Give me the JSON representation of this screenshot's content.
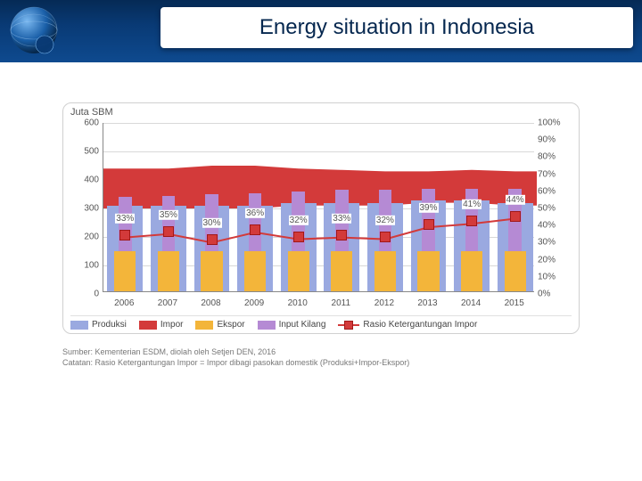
{
  "header": {
    "title": "Energy situation in Indonesia",
    "bg_gradient_from": "#052a55",
    "bg_gradient_to": "#0e4a8f",
    "title_color": "#05274f"
  },
  "chart": {
    "type": "combo-bar-area-line",
    "y_left_label": "Juta SBM",
    "y_left": {
      "min": 0,
      "max": 600,
      "step": 100
    },
    "y_right": {
      "min": 0,
      "max": 100,
      "step": 10,
      "suffix": "%"
    },
    "categories": [
      "2006",
      "2007",
      "2008",
      "2009",
      "2010",
      "2011",
      "2012",
      "2013",
      "2014",
      "2015"
    ],
    "series": {
      "produksi": {
        "label": "Produksi",
        "color": "#9aa9e0",
        "type": "bar",
        "values": [
          300,
          300,
          300,
          300,
          310,
          310,
          310,
          320,
          320,
          310
        ]
      },
      "impor": {
        "label": "Impor",
        "color": "#d33a3a",
        "type": "area",
        "values": [
          440,
          440,
          450,
          450,
          440,
          435,
          430,
          430,
          435,
          430
        ]
      },
      "ekspor": {
        "label": "Ekspor",
        "color": "#f3b53a",
        "type": "bar",
        "values": [
          140,
          140,
          140,
          140,
          140,
          140,
          140,
          140,
          140,
          140
        ]
      },
      "input_kilang": {
        "label": "Input Kilang",
        "color": "#b58ad4",
        "type": "bar",
        "values": [
          330,
          335,
          340,
          345,
          350,
          355,
          355,
          360,
          360,
          360
        ]
      },
      "rasio": {
        "label": "Rasio Ketergantungan Impor",
        "color": "#d33a3a",
        "marker_border": "#a01818",
        "type": "line-marker",
        "values_pct": [
          33,
          35,
          30,
          36,
          32,
          33,
          32,
          39,
          41,
          44
        ],
        "labels": [
          "33%",
          "35%",
          "30%",
          "36%",
          "32%",
          "33%",
          "32%",
          "39%",
          "41%",
          "44%"
        ]
      }
    },
    "grid_color": "#d8d8d8",
    "axis_color": "#888888",
    "background_color": "#ffffff",
    "card_border": "#d0d0d0",
    "tick_font_size": 10,
    "label_font_size": 11
  },
  "footnote": {
    "line1": "Sumber: Kementerian ESDM, diolah oleh Setjen DEN, 2016",
    "line2": "Catatan: Rasio Ketergantungan Impor = Impor dibagi pasokan domestik (Produksi+Impor-Ekspor)"
  }
}
